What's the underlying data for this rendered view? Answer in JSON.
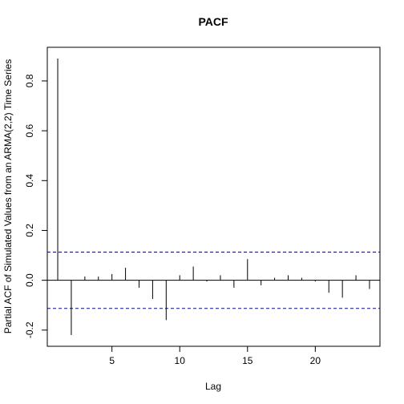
{
  "chart_data": {
    "type": "bar",
    "title": "PACF",
    "xlabel": "Lag",
    "ylabel": "Partial ACF of Simulated Values from an ARMA(2,2) Time Series",
    "x": [
      1,
      2,
      3,
      4,
      5,
      6,
      7,
      8,
      9,
      10,
      11,
      12,
      13,
      14,
      15,
      16,
      17,
      18,
      19,
      20,
      21,
      22,
      23,
      24
    ],
    "values": [
      0.89,
      -0.22,
      0.015,
      0.015,
      0.025,
      0.05,
      -0.03,
      -0.075,
      -0.16,
      0.02,
      0.055,
      -0.005,
      0.02,
      -0.03,
      0.085,
      -0.02,
      0.01,
      0.02,
      0.01,
      -0.005,
      -0.05,
      -0.07,
      0.02,
      -0.035
    ],
    "confidence_bound": 0.113,
    "xlim": [
      0.23,
      24.77
    ],
    "ylim": [
      -0.265,
      0.935
    ],
    "xticks": [
      5,
      10,
      15,
      20
    ],
    "xtick_labels": [
      "5",
      "10",
      "15",
      "20"
    ],
    "yticks": [
      -0.2,
      0.0,
      0.2,
      0.4,
      0.6,
      0.8
    ],
    "ytick_labels": [
      "-0.2",
      "0.0",
      "0.2",
      "0.4",
      "0.6",
      "0.8"
    ],
    "grid": false,
    "colors": {
      "bars": "#000000",
      "bounds": "#0000cd",
      "zero_line": "#000000"
    }
  }
}
